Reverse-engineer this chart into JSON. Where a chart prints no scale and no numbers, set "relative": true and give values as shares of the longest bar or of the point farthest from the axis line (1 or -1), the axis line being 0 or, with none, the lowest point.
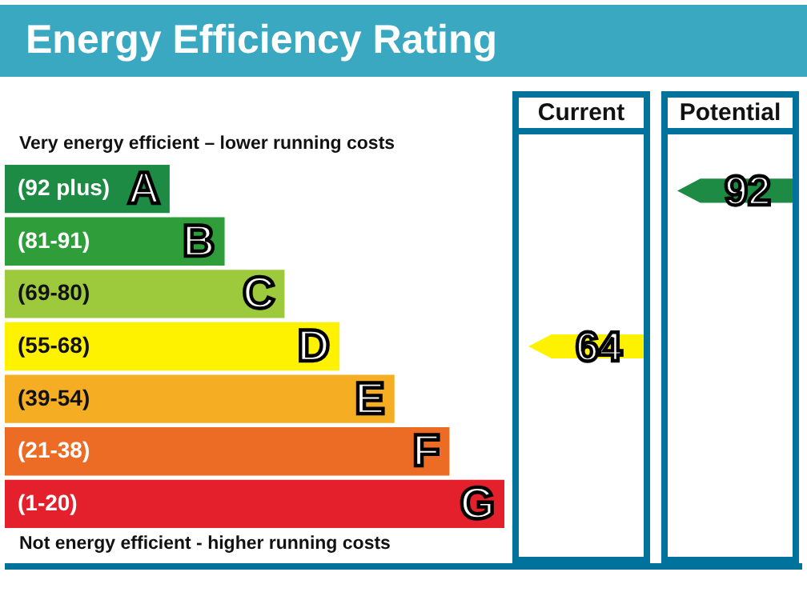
{
  "chart_data": {
    "type": "bar",
    "orientation": "horizontal",
    "relative": true,
    "title": "Energy Efficiency Rating",
    "categories": [
      "(92 plus)",
      "(81-91)",
      "(69-80)",
      "(55-68)",
      "(39-54)",
      "(21-38)",
      "(1-20)"
    ],
    "values": [
      0.33,
      0.44,
      0.56,
      0.67,
      0.78,
      0.89,
      1
    ],
    "colors": [
      "#1d8b43",
      "#2f9e3a",
      "#9cca3c",
      "#fff200",
      "#f5ae23",
      "#ec6b25",
      "#e3202b"
    ],
    "annotations": [
      "Very energy efficient – lower running costs",
      "Current",
      "Potential",
      "Not energy efficient - higher running costs",
      "64",
      "92",
      {
        "text": "A",
        "x": 0.33,
        "y": "(92 plus)"
      },
      {
        "text": "B",
        "x": 0.44,
        "y": "(81-91)"
      },
      {
        "text": "C",
        "x": 0.56,
        "y": "(69-80)"
      },
      {
        "text": "D",
        "x": 0.67,
        "y": "(55-68)"
      },
      {
        "text": "E",
        "x": 0.78,
        "y": "(39-54)"
      },
      {
        "text": "F",
        "x": 0.89,
        "y": "(21-38)"
      },
      {
        "text": "G",
        "x": 1,
        "y": "(1-20)"
      }
    ]
  }
}
